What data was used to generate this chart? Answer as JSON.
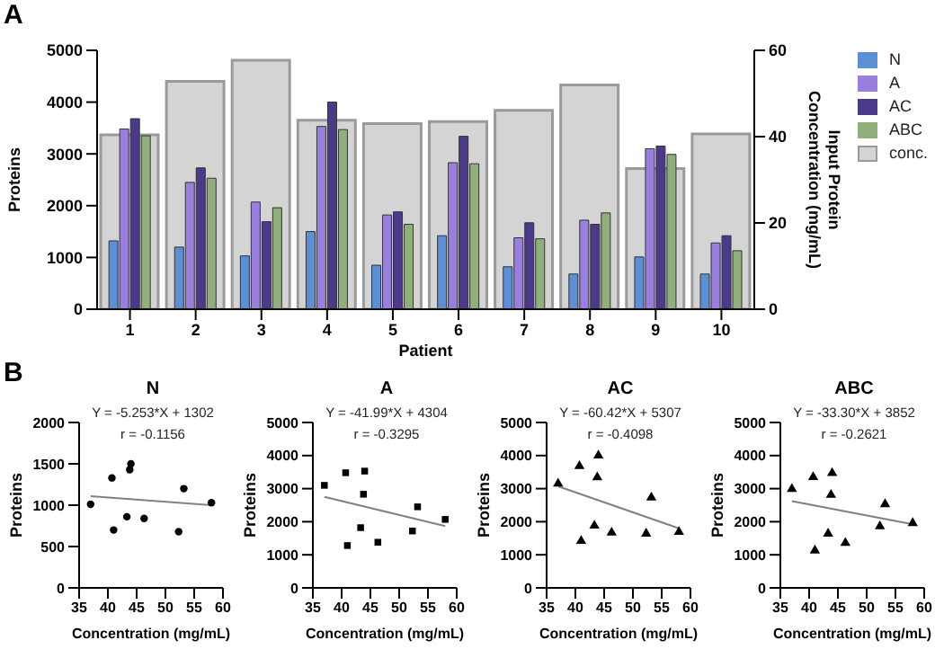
{
  "chart_data": [
    {
      "type": "bar",
      "annotations": [
        "A"
      ],
      "categories": [
        "1",
        "2",
        "3",
        "4",
        "5",
        "6",
        "7",
        "8",
        "9",
        "10"
      ],
      "xlabel": "Patient",
      "ylabel": "Proteins",
      "y2label": "Input Protein Concentration (mg/mL)",
      "legend": "right",
      "series": [
        {
          "name": "N",
          "color": "#5b8fd6",
          "values": [
            1320,
            1200,
            1030,
            1500,
            850,
            1420,
            820,
            680,
            1010,
            680
          ]
        },
        {
          "name": "A",
          "color": "#9b7fe0",
          "values": [
            3480,
            2450,
            2070,
            3530,
            1820,
            2830,
            1380,
            1720,
            3100,
            1280
          ]
        },
        {
          "name": "AC",
          "color": "#4b3a8c",
          "values": [
            3680,
            2730,
            1690,
            4000,
            1880,
            3340,
            1670,
            1640,
            3150,
            1420
          ]
        },
        {
          "name": "ABC",
          "color": "#8fb07a",
          "values": [
            3350,
            2530,
            1960,
            3470,
            1640,
            2810,
            1360,
            1860,
            2990,
            1130
          ]
        },
        {
          "name": "conc.",
          "color": "#d4d4d4",
          "axis": "y2",
          "values": [
            40.4,
            52.8,
            57.7,
            43.8,
            43,
            43.5,
            46.1,
            52,
            32.6,
            40.6
          ]
        }
      ],
      "ylim": [
        0,
        5000
      ],
      "yticks": [
        0,
        1000,
        2000,
        3000,
        4000,
        5000
      ],
      "y2lim": [
        0,
        60
      ],
      "y2ticks": [
        0,
        20,
        40,
        60
      ]
    },
    {
      "type": "scatter",
      "title": "N",
      "annotations": [
        "B",
        "Y = -5.253*X + 1302",
        "r = -0.1156"
      ],
      "xlabel": "Concentration (mg/mL)",
      "ylabel": "Proteins",
      "series": [
        {
          "type": "scatter",
          "marker": "circle",
          "color": "#000000",
          "x": [
            37,
            40.7,
            41,
            43.3,
            43.8,
            44,
            46.3,
            52.3,
            53.2,
            58
          ],
          "values": [
            1010,
            1330,
            700,
            860,
            1430,
            1500,
            840,
            680,
            1200,
            1030
          ]
        },
        {
          "type": "line",
          "color": "#808080",
          "x": [
            37,
            58
          ],
          "values": [
            1110,
            1000
          ]
        }
      ],
      "xlim": [
        35,
        60
      ],
      "xticks": [
        35,
        40,
        45,
        50,
        55,
        60
      ],
      "ylim": [
        0,
        2000
      ],
      "yticks": [
        0,
        500,
        1000,
        1500,
        2000
      ]
    },
    {
      "type": "scatter",
      "title": "A",
      "annotations": [
        "Y = -41.99*X + 4304",
        "r = -0.3295"
      ],
      "xlabel": "Concentration (mg/mL)",
      "ylabel": "Proteins",
      "series": [
        {
          "type": "scatter",
          "marker": "square",
          "color": "#000000",
          "x": [
            37,
            40.7,
            41,
            43.3,
            43.8,
            44,
            46.3,
            52.3,
            53.2,
            58
          ],
          "values": [
            3100,
            3480,
            1280,
            1820,
            2830,
            3530,
            1380,
            1720,
            2450,
            2070
          ]
        },
        {
          "type": "line",
          "color": "#808080",
          "x": [
            37,
            58
          ],
          "values": [
            2750,
            1870
          ]
        }
      ],
      "xlim": [
        35,
        60
      ],
      "xticks": [
        35,
        40,
        45,
        50,
        55,
        60
      ],
      "ylim": [
        0,
        5000
      ],
      "yticks": [
        0,
        1000,
        2000,
        3000,
        4000,
        5000
      ]
    },
    {
      "type": "scatter",
      "title": "AC",
      "annotations": [
        "Y = -60.42*X + 5307",
        "r = -0.4098"
      ],
      "xlabel": "Concentration (mg/mL)",
      "ylabel": "Proteins",
      "series": [
        {
          "type": "scatter",
          "marker": "triangle",
          "color": "#000000",
          "x": [
            37,
            40.7,
            41,
            43.3,
            43.8,
            44,
            46.3,
            52.3,
            53.2,
            58
          ],
          "values": [
            3150,
            3680,
            1420,
            1880,
            3340,
            4000,
            1670,
            1640,
            2730,
            1690
          ]
        },
        {
          "type": "line",
          "color": "#808080",
          "x": [
            37,
            58
          ],
          "values": [
            3070,
            1800
          ]
        }
      ],
      "xlim": [
        35,
        60
      ],
      "xticks": [
        35,
        40,
        45,
        50,
        55,
        60
      ],
      "ylim": [
        0,
        5000
      ],
      "yticks": [
        0,
        1000,
        2000,
        3000,
        4000,
        5000
      ]
    },
    {
      "type": "scatter",
      "title": "ABC",
      "annotations": [
        "Y = -33.30*X + 3852",
        "r = -0.2621"
      ],
      "xlabel": "Concentration (mg/mL)",
      "ylabel": "Proteins",
      "series": [
        {
          "type": "scatter",
          "marker": "triangle",
          "color": "#000000",
          "x": [
            37,
            40.7,
            41,
            43.3,
            43.8,
            44,
            46.3,
            52.3,
            53.2,
            58
          ],
          "values": [
            2990,
            3350,
            1130,
            1640,
            2810,
            3470,
            1360,
            1860,
            2530,
            1960
          ]
        },
        {
          "type": "line",
          "color": "#808080",
          "x": [
            37,
            58
          ],
          "values": [
            2620,
            1920
          ]
        }
      ],
      "xlim": [
        35,
        60
      ],
      "xticks": [
        35,
        40,
        45,
        50,
        55,
        60
      ],
      "ylim": [
        0,
        5000
      ],
      "yticks": [
        0,
        1000,
        2000,
        3000,
        4000,
        5000
      ]
    }
  ]
}
